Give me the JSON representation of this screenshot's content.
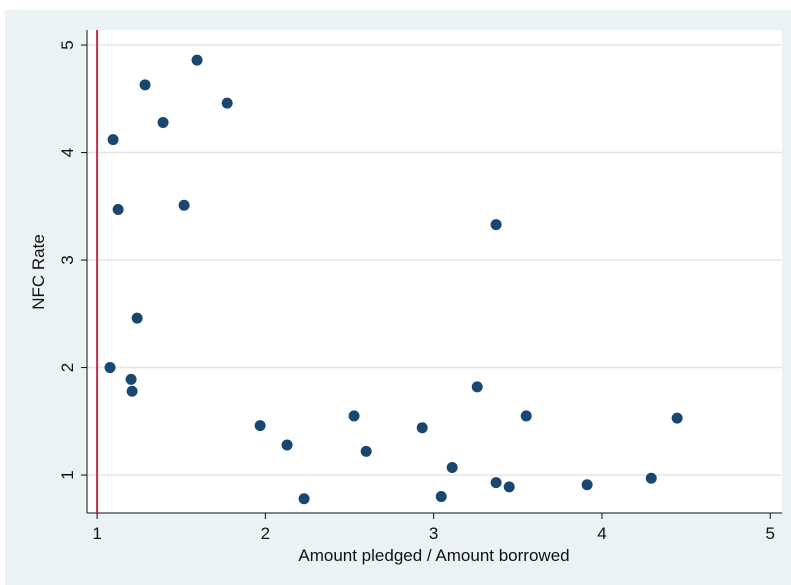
{
  "chart_data": {
    "type": "scatter",
    "x_label": "Amount pledged / Amount borrowed",
    "y_label": "NFC Rate",
    "x": [
      1.285,
      1.594,
      1.095,
      1.392,
      1.773,
      1.125,
      1.517,
      3.371,
      1.238,
      1.077,
      1.202,
      1.208,
      3.259,
      1.969,
      2.129,
      2.23,
      2.527,
      2.599,
      2.932,
      3.045,
      3.11,
      3.371,
      3.449,
      3.55,
      3.912,
      4.293,
      4.447
    ],
    "values": [
      4.63,
      4.86,
      4.12,
      4.28,
      4.46,
      3.47,
      3.51,
      3.33,
      2.46,
      2.0,
      1.89,
      1.78,
      1.82,
      1.46,
      1.28,
      0.78,
      1.55,
      1.22,
      1.44,
      0.8,
      1.07,
      0.93,
      0.89,
      1.55,
      0.91,
      0.97,
      1.53
    ],
    "color": "#1a476f",
    "xlim": [
      0.94,
      5.07
    ],
    "ylim": [
      0.647,
      5.14
    ],
    "xticks": [
      1,
      2,
      3,
      4,
      5
    ],
    "yticks": [
      1,
      2,
      3,
      4,
      5
    ],
    "grid": true,
    "reference_line": {
      "x": 1,
      "color": "#c0304a"
    }
  }
}
